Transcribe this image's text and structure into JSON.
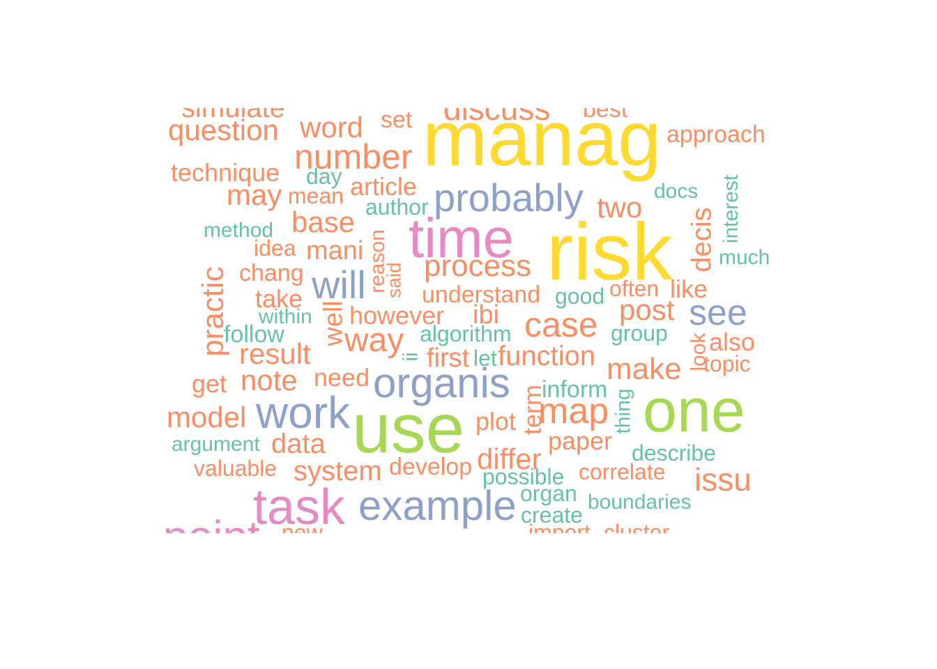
{
  "chart_data": {
    "type": "wordcloud",
    "title": "",
    "palette": {
      "yellow": "#ffd92f",
      "pink": "#e78ac3",
      "blue": "#8da0cb",
      "green": "#a6d854",
      "orange": "#fc8d62",
      "teal": "#66c2a5"
    },
    "words": [
      {
        "text": "simulate",
        "weight": 4,
        "color": "orange"
      },
      {
        "text": "discuss",
        "weight": 5,
        "color": "orange"
      },
      {
        "text": "best",
        "weight": 3,
        "color": "orange"
      },
      {
        "text": "question",
        "weight": 5,
        "color": "orange"
      },
      {
        "text": "word",
        "weight": 5,
        "color": "orange"
      },
      {
        "text": "set",
        "weight": 3,
        "color": "orange"
      },
      {
        "text": "manag",
        "weight": 20,
        "color": "yellow"
      },
      {
        "text": "approach",
        "weight": 3,
        "color": "orange"
      },
      {
        "text": "number",
        "weight": 6,
        "color": "orange"
      },
      {
        "text": "technique",
        "weight": 4,
        "color": "orange"
      },
      {
        "text": "day",
        "weight": 3,
        "color": "teal"
      },
      {
        "text": "may",
        "weight": 5,
        "color": "orange"
      },
      {
        "text": "mean",
        "weight": 3,
        "color": "orange"
      },
      {
        "text": "article",
        "weight": 4,
        "color": "orange"
      },
      {
        "text": "probably",
        "weight": 8,
        "color": "blue"
      },
      {
        "text": "two",
        "weight": 5,
        "color": "orange"
      },
      {
        "text": "docs",
        "weight": 3,
        "color": "teal"
      },
      {
        "text": "interest",
        "weight": 3,
        "color": "teal"
      },
      {
        "text": "author",
        "weight": 3,
        "color": "teal"
      },
      {
        "text": "base",
        "weight": 5,
        "color": "orange"
      },
      {
        "text": "method",
        "weight": 3,
        "color": "teal"
      },
      {
        "text": "time",
        "weight": 14,
        "color": "pink"
      },
      {
        "text": "risk",
        "weight": 22,
        "color": "yellow"
      },
      {
        "text": "decis",
        "weight": 5,
        "color": "orange"
      },
      {
        "text": "idea",
        "weight": 3,
        "color": "orange"
      },
      {
        "text": "mani",
        "weight": 5,
        "color": "orange"
      },
      {
        "text": "reason",
        "weight": 3,
        "color": "orange"
      },
      {
        "text": "much",
        "weight": 3,
        "color": "teal"
      },
      {
        "text": "chang",
        "weight": 4,
        "color": "orange"
      },
      {
        "text": "process",
        "weight": 6,
        "color": "orange"
      },
      {
        "text": "said",
        "weight": 3,
        "color": "orange"
      },
      {
        "text": "will",
        "weight": 8,
        "color": "blue"
      },
      {
        "text": "practic",
        "weight": 6,
        "color": "orange"
      },
      {
        "text": "often",
        "weight": 3,
        "color": "orange"
      },
      {
        "text": "like",
        "weight": 4,
        "color": "orange"
      },
      {
        "text": "take",
        "weight": 4,
        "color": "orange"
      },
      {
        "text": "understand",
        "weight": 4,
        "color": "orange"
      },
      {
        "text": "good",
        "weight": 3,
        "color": "teal"
      },
      {
        "text": "post",
        "weight": 5,
        "color": "orange"
      },
      {
        "text": "see",
        "weight": 8,
        "color": "blue"
      },
      {
        "text": "within",
        "weight": 3,
        "color": "teal"
      },
      {
        "text": "well",
        "weight": 4,
        "color": "orange"
      },
      {
        "text": "however",
        "weight": 4,
        "color": "orange"
      },
      {
        "text": "ibi",
        "weight": 4,
        "color": "orange"
      },
      {
        "text": "case",
        "weight": 6,
        "color": "orange"
      },
      {
        "text": "follow",
        "weight": 4,
        "color": "teal"
      },
      {
        "text": "way",
        "weight": 6,
        "color": "orange"
      },
      {
        "text": "algorithm",
        "weight": 3,
        "color": "teal"
      },
      {
        "text": "group",
        "weight": 3,
        "color": "teal"
      },
      {
        "text": "also",
        "weight": 4,
        "color": "orange"
      },
      {
        "text": "result",
        "weight": 5,
        "color": "orange"
      },
      {
        "text": "ii",
        "weight": 3,
        "color": "teal"
      },
      {
        "text": "first",
        "weight": 4,
        "color": "orange"
      },
      {
        "text": "let",
        "weight": 3,
        "color": "teal"
      },
      {
        "text": "function",
        "weight": 5,
        "color": "orange"
      },
      {
        "text": "look",
        "weight": 3,
        "color": "orange"
      },
      {
        "text": "make",
        "weight": 5,
        "color": "orange"
      },
      {
        "text": "topic",
        "weight": 3,
        "color": "orange"
      },
      {
        "text": "get",
        "weight": 4,
        "color": "orange"
      },
      {
        "text": "note",
        "weight": 5,
        "color": "orange"
      },
      {
        "text": "need",
        "weight": 4,
        "color": "orange"
      },
      {
        "text": "organis",
        "weight": 9,
        "color": "blue"
      },
      {
        "text": "inform",
        "weight": 3,
        "color": "teal"
      },
      {
        "text": "model",
        "weight": 5,
        "color": "orange"
      },
      {
        "text": "work",
        "weight": 10,
        "color": "blue"
      },
      {
        "text": "use",
        "weight": 18,
        "color": "green"
      },
      {
        "text": "term",
        "weight": 4,
        "color": "orange"
      },
      {
        "text": "map",
        "weight": 7,
        "color": "orange"
      },
      {
        "text": "thing",
        "weight": 3,
        "color": "teal"
      },
      {
        "text": "one",
        "weight": 16,
        "color": "green"
      },
      {
        "text": "plot",
        "weight": 4,
        "color": "orange"
      },
      {
        "text": "argument",
        "weight": 3,
        "color": "teal"
      },
      {
        "text": "data",
        "weight": 5,
        "color": "orange"
      },
      {
        "text": "paper",
        "weight": 4,
        "color": "orange"
      },
      {
        "text": "describe",
        "weight": 3,
        "color": "teal"
      },
      {
        "text": "differ",
        "weight": 5,
        "color": "orange"
      },
      {
        "text": "valuable",
        "weight": 3,
        "color": "orange"
      },
      {
        "text": "system",
        "weight": 5,
        "color": "orange"
      },
      {
        "text": "develop",
        "weight": 4,
        "color": "orange"
      },
      {
        "text": "correlate",
        "weight": 3,
        "color": "orange"
      },
      {
        "text": "possible",
        "weight": 3,
        "color": "teal"
      },
      {
        "text": "issu",
        "weight": 6,
        "color": "orange"
      },
      {
        "text": "task",
        "weight": 13,
        "color": "pink"
      },
      {
        "text": "example",
        "weight": 9,
        "color": "blue"
      },
      {
        "text": "organ",
        "weight": 3,
        "color": "teal"
      },
      {
        "text": "boundaries",
        "weight": 3,
        "color": "teal"
      },
      {
        "text": "create",
        "weight": 3,
        "color": "teal"
      },
      {
        "text": "point",
        "weight": 10,
        "color": "pink"
      },
      {
        "text": "new",
        "weight": 3,
        "color": "orange"
      },
      {
        "text": "import",
        "weight": 3,
        "color": "orange"
      },
      {
        "text": "cluster",
        "weight": 3,
        "color": "orange"
      }
    ]
  }
}
